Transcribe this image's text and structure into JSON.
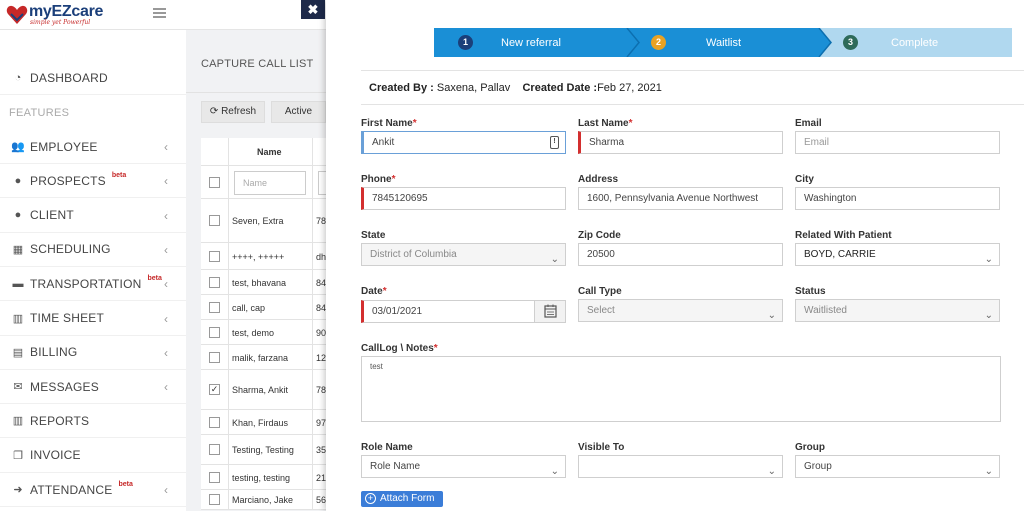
{
  "logo": {
    "text": "myEZcare",
    "tagline": "simple yet Powerful"
  },
  "close_label": "✖",
  "sidebar": {
    "dashboard": "DASHBOARD",
    "features": "FEATURES",
    "items": [
      {
        "label": "EMPLOYEE",
        "icon": "users-icon",
        "beta": "",
        "chev": true
      },
      {
        "label": "PROSPECTS",
        "icon": "user-icon",
        "beta": "beta",
        "chev": true
      },
      {
        "label": "CLIENT",
        "icon": "user-icon",
        "beta": "",
        "chev": true
      },
      {
        "label": "SCHEDULING",
        "icon": "calendar-icon",
        "beta": "",
        "chev": true
      },
      {
        "label": "TRANSPORTATION",
        "icon": "truck-icon",
        "beta": "beta",
        "chev": true
      },
      {
        "label": "TIME SHEET",
        "icon": "bar-chart-icon",
        "beta": "",
        "chev": true
      },
      {
        "label": "BILLING",
        "icon": "document-icon",
        "beta": "",
        "chev": true
      },
      {
        "label": "MESSAGES",
        "icon": "envelope-icon",
        "beta": "",
        "chev": true
      },
      {
        "label": "REPORTS",
        "icon": "bar-chart-icon",
        "beta": "",
        "chev": false
      },
      {
        "label": "INVOICE",
        "icon": "copy-icon",
        "beta": "",
        "chev": false
      },
      {
        "label": "ATTENDANCE",
        "icon": "sign-in-icon",
        "beta": "beta",
        "chev": true
      }
    ]
  },
  "list": {
    "title": "CAPTURE CALL LIST",
    "refresh": "Refresh",
    "active": "Active",
    "header_name": "Name",
    "filter_placeholder": "Name",
    "rows": [
      {
        "name": "Seven, Extra",
        "phone": "78",
        "checked": false
      },
      {
        "name": "++++, +++++",
        "phone": "dh",
        "checked": false
      },
      {
        "name": "test, bhavana",
        "phone": "84",
        "checked": false
      },
      {
        "name": "call, cap",
        "phone": "84",
        "checked": false
      },
      {
        "name": "test, demo",
        "phone": "90",
        "checked": false
      },
      {
        "name": "malik, farzana",
        "phone": "12",
        "checked": false
      },
      {
        "name": "Sharma, Ankit",
        "phone": "78",
        "checked": true
      },
      {
        "name": "Khan, Firdaus",
        "phone": "97",
        "checked": false
      },
      {
        "name": "Testing, Testing",
        "phone": "35",
        "checked": false
      },
      {
        "name": "testing, testing",
        "phone": "21",
        "checked": false
      },
      {
        "name": "Marciano, Jake",
        "phone": "56",
        "checked": false
      }
    ]
  },
  "wizard": {
    "steps": [
      {
        "num": "1",
        "label": "New referral"
      },
      {
        "num": "2",
        "label": "Waitlist"
      },
      {
        "num": "3",
        "label": "Complete"
      }
    ],
    "colors": {
      "active": "#1a8fd6",
      "inactive": "#b0d8ef",
      "num1": "#1b3f7a",
      "num2": "#e8a224",
      "num3": "#2e6b5a"
    }
  },
  "created": {
    "by_label": "Created By :",
    "by_value": "Saxena, Pallav",
    "date_label": "Created Date :",
    "date_value": "Feb 27, 2021"
  },
  "form": {
    "first_name": {
      "label": "First Name",
      "value": "Ankit"
    },
    "last_name": {
      "label": "Last Name",
      "value": "Sharma"
    },
    "email": {
      "label": "Email",
      "placeholder": "Email"
    },
    "phone": {
      "label": "Phone",
      "value": "7845120695"
    },
    "address": {
      "label": "Address",
      "value": "1600, Pennsylvania Avenue Northwest"
    },
    "city": {
      "label": "City",
      "value": "Washington"
    },
    "state": {
      "label": "State",
      "value": "District of Columbia"
    },
    "zip": {
      "label": "Zip Code",
      "value": "20500"
    },
    "related": {
      "label": "Related With Patient",
      "value": "BOYD, CARRIE"
    },
    "date": {
      "label": "Date",
      "value": "03/01/2021"
    },
    "call_type": {
      "label": "Call Type",
      "value": "Select"
    },
    "status": {
      "label": "Status",
      "value": "Waitlisted"
    },
    "notes": {
      "label": "CallLog \\ Notes",
      "value": "test"
    },
    "role": {
      "label": "Role Name",
      "value": "Role Name"
    },
    "visible": {
      "label": "Visible To",
      "value": ""
    },
    "group": {
      "label": "Group",
      "value": "Group"
    },
    "attach": "Attach Form"
  }
}
